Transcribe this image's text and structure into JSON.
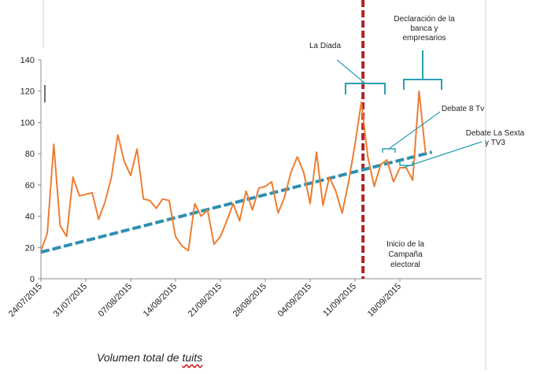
{
  "caption": {
    "prefix": "Volumen total de ",
    "emphasis": "tuits"
  },
  "chart_data": {
    "type": "line",
    "title": "",
    "xlabel": "",
    "ylabel": "",
    "ylim": [
      0,
      140
    ],
    "yticks": [
      0,
      20,
      40,
      60,
      80,
      100,
      120,
      140
    ],
    "xlim": [
      "2015-07-24",
      "2015-09-25"
    ],
    "xtick_labels": [
      "24/07/2015",
      "31/07/2015",
      "07/08/2015",
      "14/08/2015",
      "21/08/2015",
      "28/08/2015",
      "04/09/2015",
      "11/09/2015",
      "18/09/2015"
    ],
    "grid": false,
    "colors": {
      "series": "#ed7d31",
      "trend": "#2e8fb0",
      "event_line": "#b22222",
      "annotation": "#2a9fb2"
    },
    "series": [
      {
        "values": [
          [
            "2015-07-24",
            18
          ],
          [
            "2015-07-25",
            29
          ],
          [
            "2015-07-26",
            86
          ],
          [
            "2015-07-27",
            34
          ],
          [
            "2015-07-28",
            27
          ],
          [
            "2015-07-29",
            65
          ],
          [
            "2015-07-30",
            53
          ],
          [
            "2015-08-01",
            55
          ],
          [
            "2015-08-02",
            38
          ],
          [
            "2015-08-03",
            49
          ],
          [
            "2015-08-04",
            65
          ],
          [
            "2015-08-05",
            92
          ],
          [
            "2015-08-06",
            75
          ],
          [
            "2015-08-07",
            66
          ],
          [
            "2015-08-08",
            83
          ],
          [
            "2015-08-09",
            51
          ],
          [
            "2015-08-10",
            50
          ],
          [
            "2015-08-11",
            45
          ],
          [
            "2015-08-12",
            51
          ],
          [
            "2015-08-13",
            50
          ],
          [
            "2015-08-14",
            27
          ],
          [
            "2015-08-15",
            21
          ],
          [
            "2015-08-16",
            18
          ],
          [
            "2015-08-17",
            48
          ],
          [
            "2015-08-18",
            40
          ],
          [
            "2015-08-19",
            44
          ],
          [
            "2015-08-20",
            22
          ],
          [
            "2015-08-21",
            27
          ],
          [
            "2015-08-22",
            37
          ],
          [
            "2015-08-23",
            48
          ],
          [
            "2015-08-24",
            37
          ],
          [
            "2015-08-25",
            56
          ],
          [
            "2015-08-26",
            44
          ],
          [
            "2015-08-27",
            58
          ],
          [
            "2015-08-28",
            59
          ],
          [
            "2015-08-29",
            62
          ],
          [
            "2015-08-30",
            42
          ],
          [
            "2015-08-31",
            52
          ],
          [
            "2015-09-01",
            68
          ],
          [
            "2015-09-02",
            78
          ],
          [
            "2015-09-03",
            68
          ],
          [
            "2015-09-04",
            48
          ],
          [
            "2015-09-05",
            81
          ],
          [
            "2015-09-06",
            47
          ],
          [
            "2015-09-07",
            65
          ],
          [
            "2015-09-08",
            56
          ],
          [
            "2015-09-09",
            42
          ],
          [
            "2015-09-10",
            62
          ],
          [
            "2015-09-11",
            86
          ],
          [
            "2015-09-12",
            113
          ],
          [
            "2015-09-13",
            78
          ],
          [
            "2015-09-14",
            59
          ],
          [
            "2015-09-15",
            73
          ],
          [
            "2015-09-16",
            76
          ],
          [
            "2015-09-17",
            62
          ],
          [
            "2015-09-18",
            71
          ],
          [
            "2015-09-19",
            71
          ],
          [
            "2015-09-20",
            63
          ],
          [
            "2015-09-21",
            120
          ],
          [
            "2015-09-22",
            80
          ]
        ]
      }
    ],
    "trendline": [
      [
        "2015-07-24",
        17
      ],
      [
        "2015-09-23",
        81
      ]
    ],
    "event_line": {
      "date": "2015-09-12",
      "label": "Inicio de la Campaña electoral"
    },
    "annotations": [
      {
        "text": "La Diada"
      },
      {
        "text": "Declaración de la banca y empresarios"
      },
      {
        "text": "Debate 8 Tv"
      },
      {
        "text": "Debate La Sexta y TV3"
      }
    ]
  }
}
